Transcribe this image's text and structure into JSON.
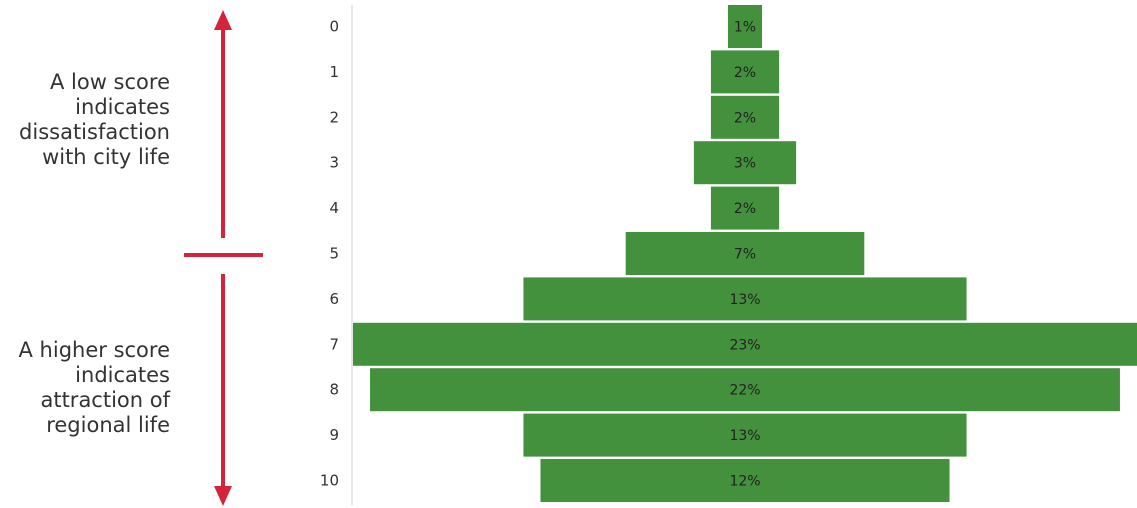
{
  "annotations": {
    "low": "A low score indicates dissatisfaction with city life",
    "high": "A higher score indicates attraction of regional life"
  },
  "colors": {
    "bar": "#43913c",
    "arrow": "#d3243a",
    "axis": "#cfcfcf",
    "text": "#333333",
    "label": "#222222"
  },
  "chart_data": {
    "type": "bar",
    "orientation": "horizontal",
    "style": "centered-funnel",
    "categories": [
      "0",
      "1",
      "2",
      "3",
      "4",
      "5",
      "6",
      "7",
      "8",
      "9",
      "10"
    ],
    "values": [
      1,
      2,
      2,
      3,
      2,
      7,
      13,
      23,
      22,
      13,
      12
    ],
    "labels": [
      "1%",
      "2%",
      "2%",
      "3%",
      "2%",
      "7%",
      "13%",
      "23%",
      "22%",
      "13%",
      "12%"
    ],
    "unit": "%",
    "title": "",
    "xlabel": "",
    "ylabel": "",
    "grid": false,
    "legend": "none"
  }
}
